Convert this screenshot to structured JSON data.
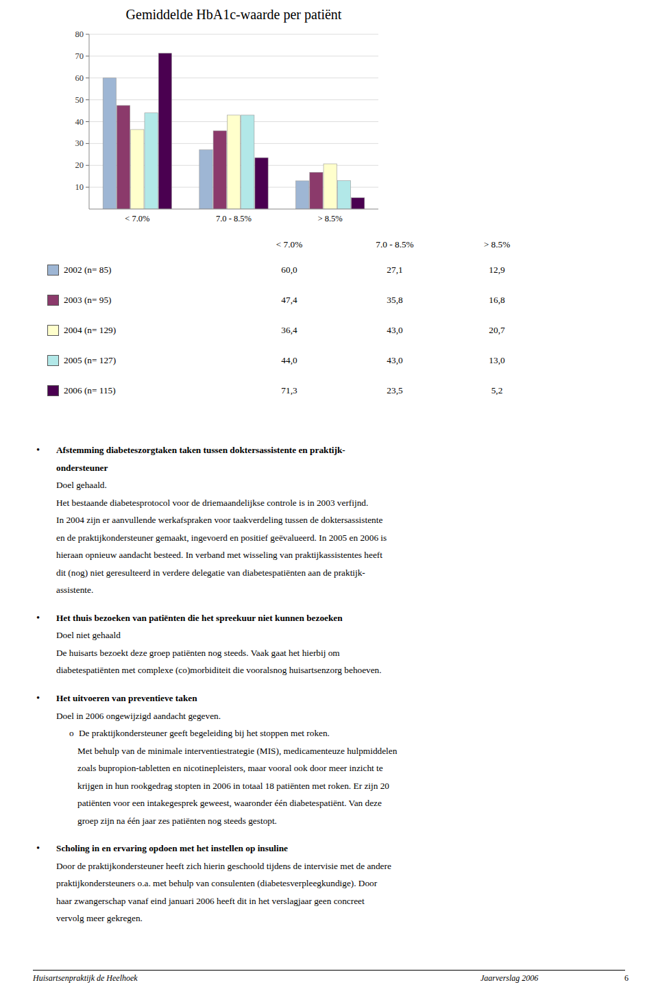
{
  "chart_data": {
    "type": "bar",
    "title": "Gemiddelde HbA1c-waarde per patiënt",
    "categories": [
      "< 7.0%",
      "7.0 - 8.5%",
      "> 8.5%"
    ],
    "series": [
      {
        "name": "2002 (n= 85)",
        "color": "#9eb6d4",
        "values": [
          60.0,
          27.1,
          12.9
        ]
      },
      {
        "name": "2003 (n= 95)",
        "color": "#8b3a6b",
        "values": [
          47.4,
          35.8,
          16.8
        ]
      },
      {
        "name": "2004 (n= 129)",
        "color": "#ffffcc",
        "values": [
          36.4,
          43.0,
          20.7
        ]
      },
      {
        "name": "2005 (n= 127)",
        "color": "#b2e8e8",
        "values": [
          44.0,
          43.0,
          13.0
        ]
      },
      {
        "name": "2006 (n= 115)",
        "color": "#4a0050",
        "values": [
          71.3,
          23.5,
          5.2
        ]
      }
    ],
    "ylim": [
      0,
      80
    ],
    "yticks": [
      10,
      20,
      30,
      40,
      50,
      60,
      70,
      80
    ],
    "grid": true
  },
  "table": {
    "values": [
      [
        "60,0",
        "27,1",
        "12,9"
      ],
      [
        "47,4",
        "35,8",
        "16,8"
      ],
      [
        "36,4",
        "43,0",
        "20,7"
      ],
      [
        "44,0",
        "43,0",
        "13,0"
      ],
      [
        "71,3",
        "23,5",
        "5,2"
      ]
    ]
  },
  "body_sections": [
    {
      "bullet": "•",
      "bold": [
        "Afstemming diabeteszorgtaken taken tussen doktersassistente en praktijk-",
        "ondersteuner"
      ],
      "normal": [
        "Doel gehaald.",
        "Het bestaande diabetesprotocol voor de driemaandelijkse controle is in 2003 verfijnd.",
        "In 2004 zijn er aanvullende werkafspraken voor taakverdeling tussen de doktersassistente",
        "en de praktijkondersteuner gemaakt, ingevoerd en positief geëvalueerd. In 2005 en 2006 is",
        "hieraan opnieuw aandacht besteed. In verband met wisseling van praktijkassistentes heeft",
        "dit (nog) niet geresulteerd in verdere delegatie van diabetespatiënten aan de praktijk-",
        "assistente."
      ]
    },
    {
      "bullet": "•",
      "bold": [
        "Het thuis bezoeken van patiënten die het spreekuur niet kunnen bezoeken"
      ],
      "normal": [
        "Doel niet gehaald",
        "De huisarts bezoekt deze groep patiënten nog steeds. Vaak gaat het hierbij om",
        "diabetespatiënten met complexe (co)morbiditeit die vooralsnog huisartsenzorg behoeven."
      ]
    },
    {
      "bullet": "•",
      "bold": [
        "Het uitvoeren van preventieve taken"
      ],
      "normal": [
        "Doel in 2006 ongewijzigd aandacht gegeven.",
        {
          "sub_bullet": "o",
          "text": "De praktijkondersteuner geeft begeleiding bij het stoppen met roken."
        },
        {
          "indent": true,
          "text": "Met behulp van de minimale interventiestrategie (MIS), medicamenteuze hulpmiddelen"
        },
        {
          "indent": true,
          "text": "zoals bupropion-tabletten en nicotinepleisters, maar vooral ook door meer inzicht te"
        },
        {
          "indent": true,
          "text": "krijgen in hun rookgedrag stopten in 2006 in totaal 18 patiënten met roken. Er zijn 20"
        },
        {
          "indent": true,
          "text": "patiënten voor een intakegesprek geweest, waaronder één diabetespatiënt. Van deze"
        },
        {
          "indent": true,
          "text": "groep zijn na één jaar zes patiënten nog steeds gestopt."
        }
      ]
    },
    {
      "bullet": "•",
      "bold": [
        "Scholing in en ervaring opdoen met het instellen op insuline"
      ],
      "normal": [
        "Door de praktijkondersteuner heeft zich hierin geschoold tijdens de intervisie met de andere",
        "praktijkondersteuners o.a. met behulp van consulenten (diabetesverpleegkundige). Door",
        "haar zwangerschap vanaf eind januari 2006 heeft dit in het verslagjaar geen concreet",
        "vervolg meer gekregen."
      ]
    }
  ],
  "footer": {
    "left": "Huisartsenpraktijk de Heelhoek",
    "right": "Jaarverslag 2006",
    "number": "6"
  }
}
